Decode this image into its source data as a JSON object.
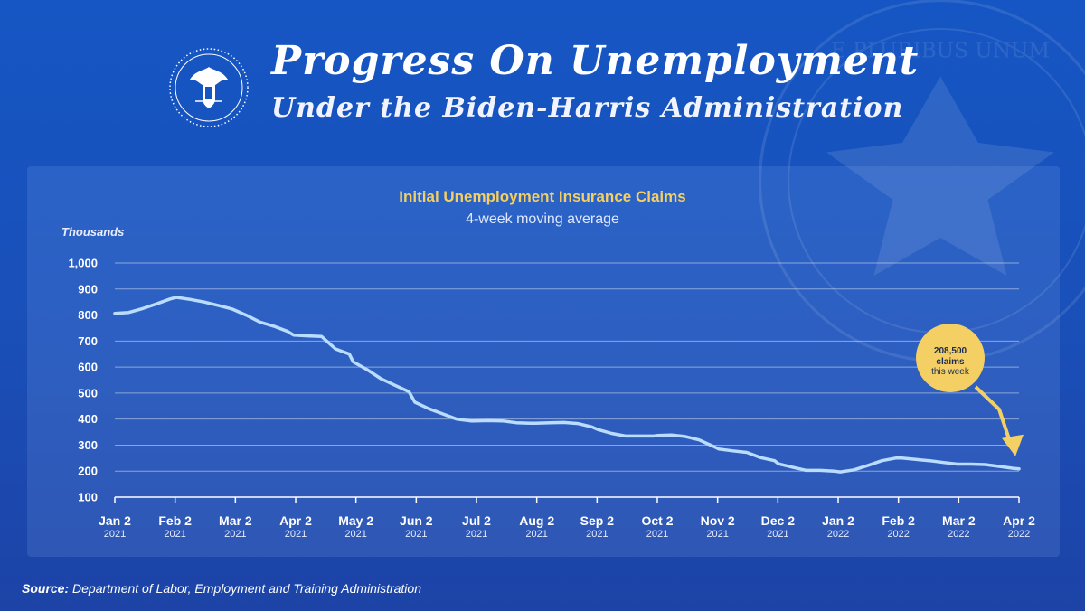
{
  "header": {
    "title": "Progress On Unemployment",
    "subtitle": "Under the Biden-Harris Administration"
  },
  "seal": {
    "motto": "E PLURIBUS UNUM"
  },
  "chart_data": {
    "type": "line",
    "title": "Initial Unemployment Insurance Claims",
    "subtitle": "4-week moving average",
    "ylabel": "Thousands",
    "ylim": [
      100,
      1000
    ],
    "yticks": [
      100,
      200,
      300,
      400,
      500,
      600,
      700,
      800,
      900,
      1000
    ],
    "ytick_labels": [
      "100",
      "200",
      "300",
      "400",
      "500",
      "600",
      "700",
      "800",
      "900",
      "1,000"
    ],
    "xticks": [
      {
        "label": "Jan 2",
        "year": "2021"
      },
      {
        "label": "Feb 2",
        "year": "2021"
      },
      {
        "label": "Mar 2",
        "year": "2021"
      },
      {
        "label": "Apr 2",
        "year": "2021"
      },
      {
        "label": "May 2",
        "year": "2021"
      },
      {
        "label": "Jun 2",
        "year": "2021"
      },
      {
        "label": "Jul 2",
        "year": "2021"
      },
      {
        "label": "Aug 2",
        "year": "2021"
      },
      {
        "label": "Sep 2",
        "year": "2021"
      },
      {
        "label": "Oct 2",
        "year": "2021"
      },
      {
        "label": "Nov 2",
        "year": "2021"
      },
      {
        "label": "Dec 2",
        "year": "2021"
      },
      {
        "label": "Jan 2",
        "year": "2022"
      },
      {
        "label": "Feb 2",
        "year": "2022"
      },
      {
        "label": "Mar 2",
        "year": "2022"
      },
      {
        "label": "Apr 2",
        "year": "2022"
      }
    ],
    "grid": true,
    "series": [
      {
        "color": "#b9dcff",
        "points": [
          [
            "2021-01-02",
            806
          ],
          [
            "2021-01-09",
            810
          ],
          [
            "2021-01-16",
            825
          ],
          [
            "2021-01-23",
            843
          ],
          [
            "2021-01-30",
            862
          ],
          [
            "2021-02-02",
            868
          ],
          [
            "2021-02-09",
            860
          ],
          [
            "2021-02-16",
            850
          ],
          [
            "2021-02-23",
            837
          ],
          [
            "2021-03-02",
            823
          ],
          [
            "2021-03-09",
            800
          ],
          [
            "2021-03-16",
            773
          ],
          [
            "2021-03-23",
            757
          ],
          [
            "2021-03-30",
            737
          ],
          [
            "2021-04-02",
            723
          ],
          [
            "2021-04-09",
            720
          ],
          [
            "2021-04-16",
            718
          ],
          [
            "2021-04-23",
            670
          ],
          [
            "2021-04-30",
            650
          ],
          [
            "2021-05-02",
            620
          ],
          [
            "2021-05-09",
            590
          ],
          [
            "2021-05-16",
            555
          ],
          [
            "2021-05-23",
            530
          ],
          [
            "2021-05-30",
            505
          ],
          [
            "2021-06-02",
            465
          ],
          [
            "2021-06-09",
            440
          ],
          [
            "2021-06-16",
            420
          ],
          [
            "2021-06-23",
            400
          ],
          [
            "2021-06-30",
            393
          ],
          [
            "2021-07-02",
            393
          ],
          [
            "2021-07-09",
            394
          ],
          [
            "2021-07-16",
            393
          ],
          [
            "2021-07-23",
            386
          ],
          [
            "2021-07-30",
            384
          ],
          [
            "2021-08-02",
            384
          ],
          [
            "2021-08-09",
            386
          ],
          [
            "2021-08-16",
            387
          ],
          [
            "2021-08-23",
            383
          ],
          [
            "2021-08-30",
            370
          ],
          [
            "2021-09-02",
            360
          ],
          [
            "2021-09-09",
            345
          ],
          [
            "2021-09-16",
            335
          ],
          [
            "2021-09-23",
            335
          ],
          [
            "2021-09-30",
            335
          ],
          [
            "2021-10-02",
            337
          ],
          [
            "2021-10-09",
            339
          ],
          [
            "2021-10-16",
            333
          ],
          [
            "2021-10-23",
            320
          ],
          [
            "2021-10-30",
            296
          ],
          [
            "2021-11-02",
            285
          ],
          [
            "2021-11-09",
            278
          ],
          [
            "2021-11-16",
            272
          ],
          [
            "2021-11-23",
            252
          ],
          [
            "2021-11-30",
            240
          ],
          [
            "2021-12-02",
            228
          ],
          [
            "2021-12-09",
            215
          ],
          [
            "2021-12-16",
            203
          ],
          [
            "2021-12-23",
            203
          ],
          [
            "2021-12-30",
            200
          ],
          [
            "2022-01-02",
            197
          ],
          [
            "2022-01-09",
            205
          ],
          [
            "2022-01-16",
            222
          ],
          [
            "2022-01-23",
            240
          ],
          [
            "2022-01-30",
            250
          ],
          [
            "2022-02-02",
            250
          ],
          [
            "2022-02-09",
            245
          ],
          [
            "2022-02-16",
            240
          ],
          [
            "2022-02-23",
            233
          ],
          [
            "2022-03-02",
            227
          ],
          [
            "2022-03-09",
            227
          ],
          [
            "2022-03-16",
            225
          ],
          [
            "2022-03-23",
            218
          ],
          [
            "2022-03-30",
            211
          ],
          [
            "2022-04-02",
            208.5
          ]
        ]
      }
    ],
    "annotation": {
      "value": "208,500",
      "line1": "claims",
      "line2": "this week",
      "color": "#f4cf63"
    }
  },
  "footer": {
    "source_label": "Source:",
    "source_text": " Department of Labor, Employment and Training Administration"
  }
}
